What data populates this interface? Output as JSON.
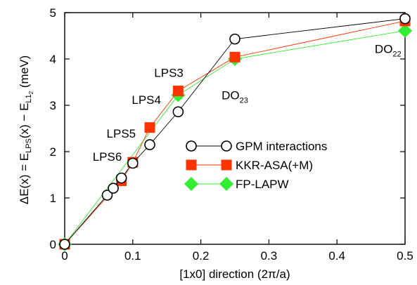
{
  "chart_data": {
    "type": "scatter",
    "xlabel": "[1x0] direction (2π/a)",
    "ylabel_parts": {
      "a": "ΔE(x) = E",
      "a_sub": "LPS",
      "b": "(x) − E",
      "b_sub": "L1",
      "b_subsub": "2",
      "c": " (meV)"
    },
    "xlim": [
      0,
      0.5
    ],
    "ylim": [
      0,
      5
    ],
    "x_ticks": [
      0,
      0.1,
      0.2,
      0.3,
      0.4,
      0.5
    ],
    "x_tick_labels": [
      "0",
      "0.1",
      "0.2",
      "0.3",
      "0.4",
      "0.5"
    ],
    "y_ticks": [
      0,
      1,
      2,
      3,
      4,
      5
    ],
    "y_tick_labels": [
      "0",
      "1",
      "2",
      "3",
      "4",
      "5"
    ],
    "grid": false,
    "legend_position": "center-right",
    "series": [
      {
        "name": "GPM interactions",
        "marker": "open-circle",
        "color": "#000000",
        "x": [
          0,
          0.0625,
          0.0714,
          0.0833,
          0.1,
          0.125,
          0.1667,
          0.25,
          0.5
        ],
        "y": [
          0,
          1.06,
          1.21,
          1.43,
          1.75,
          2.15,
          2.86,
          4.43,
          4.87
        ]
      },
      {
        "name": "KKR-ASA(+M)",
        "marker": "filled-square",
        "color": "#ff3300",
        "x": [
          0,
          0.0833,
          0.1,
          0.125,
          0.1667,
          0.25,
          0.5
        ],
        "y": [
          0,
          1.37,
          1.77,
          2.52,
          3.31,
          4.04,
          4.82
        ]
      },
      {
        "name": "FP-LAPW",
        "marker": "filled-diamond",
        "color": "#33ee33",
        "x": [
          0,
          0.1667,
          0.25,
          0.5
        ],
        "y": [
          0,
          3.22,
          4.0,
          4.61
        ]
      }
    ],
    "annotations": [
      {
        "text": "LPS6",
        "x": 0.0625,
        "y": 1.8
      },
      {
        "text": "LPS5",
        "x": 0.083,
        "y": 2.3
      },
      {
        "text": "LPS4",
        "x": 0.12,
        "y": 3.03
      },
      {
        "text": "LPS3",
        "x": 0.153,
        "y": 3.61
      },
      {
        "text": "DO",
        "sub": "23",
        "x": 0.25,
        "y": 3.13
      },
      {
        "text": "DO",
        "sub": "22",
        "x": 0.475,
        "y": 4.13
      }
    ]
  }
}
